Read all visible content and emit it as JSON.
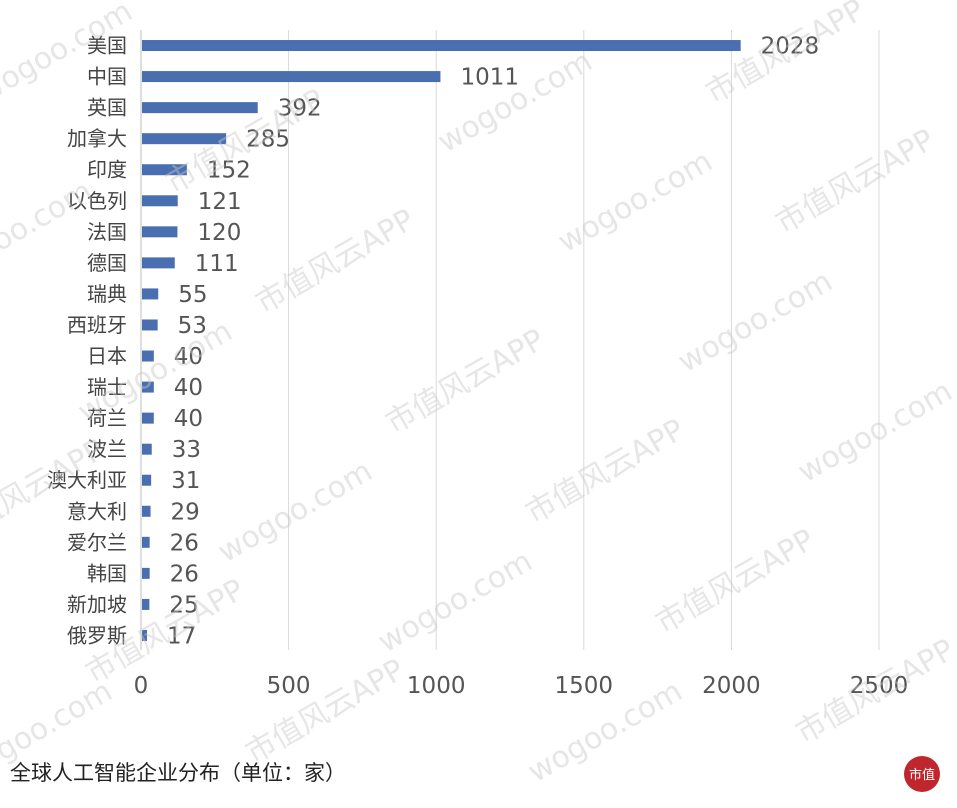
{
  "caption": "全球人工智能企业分布（单位：家）",
  "watermark": {
    "texts": [
      "wogoo.com",
      "市值风云APP"
    ],
    "color": "#c8c8c8"
  },
  "logo": {
    "text": "市值",
    "color": "#c0262d"
  },
  "chart_data": {
    "type": "bar",
    "orientation": "horizontal",
    "title": "",
    "xlabel": "",
    "ylabel": "",
    "xlim": [
      0,
      2500
    ],
    "xticks": [
      0,
      500,
      1000,
      1500,
      2000,
      2500
    ],
    "grid": "vertical",
    "bar_color": "#4a6fb0",
    "categories": [
      "美国",
      "中国",
      "英国",
      "加拿大",
      "印度",
      "以色列",
      "法国",
      "德国",
      "瑞典",
      "西班牙",
      "日本",
      "瑞士",
      "荷兰",
      "波兰",
      "澳大利亚",
      "意大利",
      "爱尔兰",
      "韩国",
      "新加坡",
      "俄罗斯"
    ],
    "values": [
      2028,
      1011,
      392,
      285,
      152,
      121,
      120,
      111,
      55,
      53,
      40,
      40,
      40,
      33,
      31,
      29,
      26,
      26,
      25,
      17
    ]
  }
}
